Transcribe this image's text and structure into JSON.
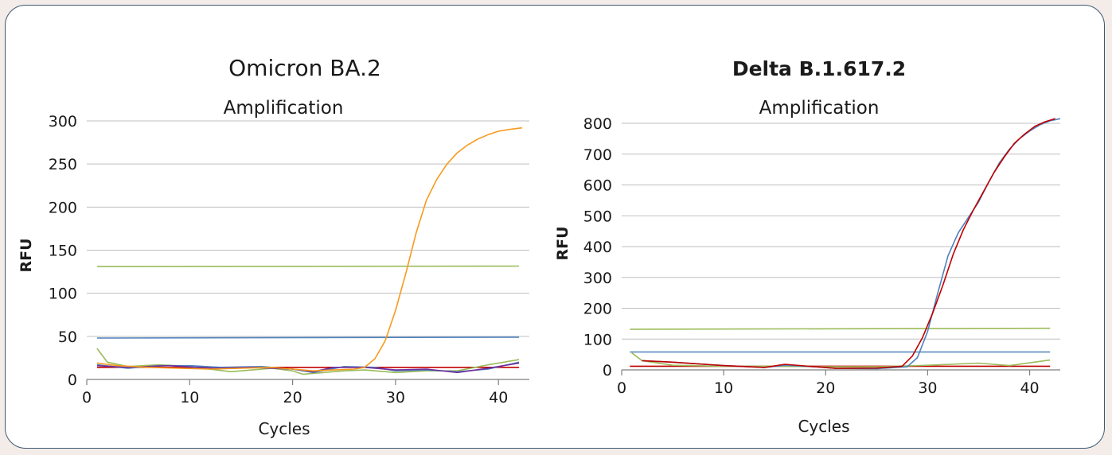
{
  "chart_data": [
    {
      "type": "line",
      "title": "Omicron BA.2",
      "subtitle": "Amplification",
      "xlabel": "Cycles",
      "ylabel": "RFU",
      "xlim": [
        0,
        43
      ],
      "ylim": [
        0,
        300
      ],
      "x_ticks": [
        0,
        10,
        20,
        30,
        40
      ],
      "y_ticks": [
        0,
        50,
        100,
        150,
        200,
        250,
        300
      ],
      "grid": "horizontal",
      "series": [
        {
          "color": "#9bbb59",
          "x": [
            1,
            42
          ],
          "y": [
            131,
            131.5
          ]
        },
        {
          "color": "#4f81bd",
          "x": [
            1,
            42
          ],
          "y": [
            48,
            49
          ]
        },
        {
          "color": "#c00000",
          "x": [
            1,
            42
          ],
          "y": [
            14,
            14
          ]
        },
        {
          "color": "#9bbb59",
          "x": [
            1,
            2,
            4,
            7,
            10,
            14,
            18,
            20,
            21,
            25,
            27,
            30,
            33,
            36,
            39,
            42
          ],
          "y": [
            36,
            20,
            15,
            17,
            15,
            9,
            13,
            10,
            6,
            10,
            11,
            8,
            10,
            10,
            17,
            23
          ]
        },
        {
          "color": "#4f81bd",
          "x": [
            1,
            4,
            7,
            10,
            13,
            17,
            20,
            22,
            25,
            28,
            30,
            33,
            36,
            39,
            42
          ],
          "y": [
            17,
            13,
            16,
            16,
            14,
            15,
            12,
            8,
            15,
            14,
            10,
            11,
            9,
            12,
            20
          ]
        },
        {
          "color": "#7030a0",
          "x": [
            1,
            4,
            8,
            12,
            16,
            20,
            22,
            24,
            27,
            30,
            33,
            36,
            39,
            42
          ],
          "y": [
            16,
            14,
            16,
            13,
            14,
            12,
            9,
            14,
            14,
            11,
            12,
            8,
            13,
            19
          ]
        },
        {
          "color": "#f79a1e",
          "x": [
            1,
            3,
            6,
            9,
            12,
            15,
            18,
            20,
            22,
            24,
            26,
            27,
            28,
            29,
            30,
            31,
            32,
            33,
            34,
            35,
            36,
            37,
            38,
            39,
            40,
            41,
            42.3
          ],
          "y": [
            19,
            16,
            14,
            13,
            12,
            13,
            14,
            12,
            10,
            11,
            12,
            14,
            24,
            45,
            80,
            123,
            170,
            208,
            232,
            250,
            263,
            272,
            279,
            284,
            288,
            290,
            292
          ]
        }
      ]
    },
    {
      "type": "line",
      "title": "Delta B.1.617.2",
      "subtitle": "Amplification",
      "xlabel": "Cycles",
      "ylabel": "RFU",
      "xlim": [
        0,
        43
      ],
      "ylim": [
        0,
        800
      ],
      "x_ticks": [
        0,
        10,
        20,
        30,
        40
      ],
      "y_ticks": [
        0,
        100,
        200,
        300,
        400,
        500,
        600,
        700,
        800
      ],
      "grid": "horizontal",
      "series": [
        {
          "color": "#9bbb59",
          "x": [
            0.8,
            42
          ],
          "y": [
            132,
            135
          ]
        },
        {
          "color": "#4f81bd",
          "x": [
            0.8,
            42
          ],
          "y": [
            58,
            58
          ]
        },
        {
          "color": "#c00000",
          "x": [
            0.8,
            42
          ],
          "y": [
            12,
            12
          ]
        },
        {
          "color": "#9bbb59",
          "x": [
            1,
            2,
            5,
            10,
            15,
            20,
            25,
            30,
            35,
            38,
            42
          ],
          "y": [
            55,
            30,
            15,
            12,
            12,
            10,
            10,
            15,
            22,
            14,
            32
          ]
        },
        {
          "color": "#4f81bd",
          "x": [
            2,
            5,
            10,
            14,
            16,
            19,
            21,
            25,
            28,
            29,
            30,
            31,
            32,
            33,
            34,
            35,
            36,
            37,
            38,
            39,
            40,
            41,
            42,
            43
          ],
          "y": [
            30,
            25,
            14,
            8,
            15,
            10,
            5,
            4,
            10,
            40,
            125,
            250,
            370,
            445,
            495,
            545,
            610,
            670,
            715,
            750,
            775,
            795,
            808,
            815
          ]
        },
        {
          "color": "#c00000",
          "x": [
            2,
            5,
            10,
            14,
            16,
            19,
            21,
            25,
            27.5,
            28.5,
            29.5,
            30.5,
            31.5,
            32.5,
            33.5,
            34.5,
            35.5,
            36.5,
            37.5,
            38.5,
            39.5,
            40.5,
            41.5,
            42.5
          ],
          "y": [
            30,
            25,
            14,
            8,
            18,
            10,
            5,
            6,
            12,
            45,
            105,
            185,
            275,
            375,
            455,
            520,
            580,
            640,
            690,
            735,
            765,
            790,
            805,
            815
          ]
        }
      ]
    }
  ]
}
